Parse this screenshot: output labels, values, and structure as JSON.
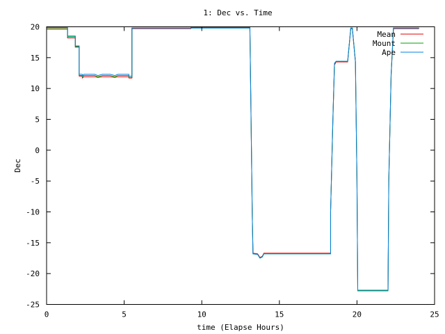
{
  "chart_data": {
    "type": "line",
    "title": "1: Dec vs. Time",
    "xlabel": "time (Elapse Hours)",
    "ylabel": "Dec",
    "xlim": [
      0,
      25
    ],
    "ylim": [
      -25,
      20
    ],
    "x_ticks": [
      0,
      5,
      10,
      15,
      20,
      25
    ],
    "y_ticks": [
      -25,
      -20,
      -15,
      -10,
      -5,
      0,
      5,
      10,
      15,
      20
    ],
    "grid": false,
    "legend_position": "top-right",
    "series": [
      {
        "name": "Mean",
        "color": "#e00000",
        "x": [
          0,
          1.35,
          1.35,
          1.85,
          1.85,
          2.1,
          2.1,
          2.3,
          2.3,
          2.4,
          2.5,
          3.1,
          3.3,
          3.6,
          4.1,
          4.4,
          4.6,
          5.0,
          5.0,
          5.3,
          5.3,
          5.5,
          5.5,
          9.3,
          9.3,
          13.1,
          13.15,
          13.25,
          13.3,
          13.6,
          13.75,
          13.9,
          14.0,
          18.3,
          18.3,
          18.45,
          18.55,
          18.65,
          18.7,
          19.4,
          19.5,
          19.6,
          19.7,
          19.8,
          19.9,
          20.0,
          20.05,
          22.0,
          22.05,
          22.2,
          22.35,
          24.0
        ],
        "y": [
          19.6,
          19.6,
          18.2,
          18.2,
          16.7,
          16.7,
          12.0,
          12.0,
          11.7,
          11.9,
          11.9,
          11.9,
          11.8,
          11.9,
          11.9,
          11.8,
          11.9,
          11.9,
          11.9,
          11.9,
          11.7,
          11.7,
          19.7,
          19.7,
          19.9,
          19.9,
          10.0,
          -10.0,
          -16.7,
          -16.8,
          -17.4,
          -17.2,
          -16.7,
          -16.7,
          -10.0,
          5.0,
          13.8,
          14.3,
          14.3,
          14.3,
          17.0,
          19.7,
          19.7,
          17.0,
          14.3,
          -5.0,
          -22.7,
          -22.7,
          -5.0,
          12.0,
          19.7,
          19.7
        ]
      },
      {
        "name": "Mount",
        "color": "#00a000",
        "x": [
          0,
          1.35,
          1.35,
          1.85,
          1.85,
          2.1,
          2.1,
          2.3,
          2.3,
          2.4,
          2.5,
          3.1,
          3.3,
          3.6,
          4.1,
          4.4,
          4.6,
          5.0,
          5.0,
          5.3,
          5.3,
          5.5,
          5.5,
          9.3,
          9.3,
          13.1,
          13.15,
          13.25,
          13.3,
          13.6,
          13.75,
          13.9,
          14.0,
          18.3,
          18.3,
          18.45,
          18.55,
          18.65,
          18.7,
          19.4,
          19.5,
          19.6,
          19.7,
          19.8,
          19.9,
          20.0,
          20.05,
          22.0,
          22.05,
          22.2,
          22.35,
          24.0
        ],
        "y": [
          19.8,
          19.8,
          18.4,
          18.4,
          16.8,
          16.8,
          12.1,
          12.1,
          11.9,
          12.1,
          12.1,
          12.1,
          11.9,
          12.1,
          12.1,
          11.9,
          12.1,
          12.1,
          12.1,
          12.1,
          11.8,
          11.8,
          19.8,
          19.8,
          19.8,
          19.8,
          10.3,
          -10.0,
          -16.8,
          -16.9,
          -17.5,
          -17.3,
          -16.8,
          -16.8,
          -10.0,
          5.2,
          14.0,
          14.4,
          14.4,
          14.4,
          17.1,
          19.8,
          19.8,
          17.1,
          14.4,
          -5.0,
          -22.8,
          -22.8,
          -5.0,
          12.2,
          19.8,
          19.8
        ]
      },
      {
        "name": "Ape",
        "color": "#0080e0",
        "x": [
          0,
          1.35,
          1.35,
          1.85,
          1.85,
          2.1,
          2.1,
          2.3,
          2.3,
          2.4,
          2.5,
          3.1,
          3.3,
          3.6,
          4.1,
          4.4,
          4.6,
          5.0,
          5.0,
          5.3,
          5.3,
          5.5,
          5.5,
          9.3,
          9.3,
          13.1,
          13.15,
          13.25,
          13.3,
          13.6,
          13.75,
          13.9,
          14.0,
          18.3,
          18.3,
          18.45,
          18.55,
          18.65,
          18.7,
          19.4,
          19.5,
          19.6,
          19.7,
          19.8,
          19.9,
          20.0,
          20.05,
          22.0,
          22.05,
          22.2,
          22.35,
          24.0
        ],
        "y": [
          19.9,
          19.9,
          18.5,
          18.5,
          16.9,
          16.9,
          12.3,
          12.3,
          12.0,
          12.3,
          12.3,
          12.3,
          12.1,
          12.3,
          12.3,
          12.1,
          12.3,
          12.3,
          12.3,
          12.3,
          12.0,
          12.0,
          19.8,
          19.8,
          19.8,
          19.8,
          10.5,
          -10.0,
          -16.8,
          -16.9,
          -17.5,
          -17.3,
          -16.8,
          -16.8,
          -10.0,
          5.3,
          14.1,
          14.4,
          14.4,
          14.4,
          17.1,
          19.8,
          19.8,
          17.1,
          14.4,
          -5.0,
          -22.7,
          -22.7,
          -5.0,
          12.3,
          19.8,
          19.8
        ]
      }
    ]
  }
}
